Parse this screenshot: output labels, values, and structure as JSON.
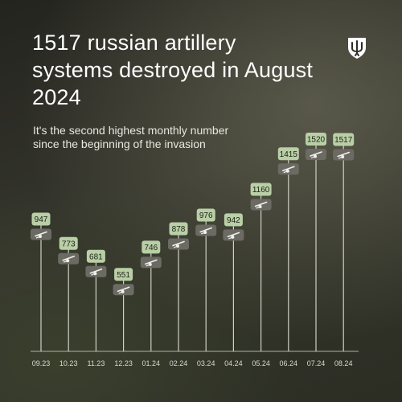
{
  "title": "1517 russian artillery systems destroyed in August 2024",
  "subtitle": "It's the second highest monthly number since the beginning of the invasion",
  "icons": {
    "logo": "trident-shield-icon",
    "marker": "artillery-gun-icon"
  },
  "colors": {
    "label_bg": "#b9cfa6",
    "icon_bg": "#6b6b63",
    "line": "#cfd0c4",
    "text": "#ffffff"
  },
  "chart_data": {
    "type": "bar",
    "categories": [
      "09.23",
      "10.23",
      "11.23",
      "12.23",
      "01.24",
      "02.24",
      "03.24",
      "04.24",
      "05.24",
      "06.24",
      "07.24",
      "08.24"
    ],
    "values": [
      947,
      773,
      681,
      551,
      746,
      878,
      976,
      942,
      1160,
      1415,
      1520,
      1517
    ],
    "title": "1517 russian artillery systems destroyed in August 2024",
    "xlabel": "",
    "ylabel": "",
    "ylim": [
      0,
      1700
    ],
    "grid": false,
    "data_labels": true
  }
}
